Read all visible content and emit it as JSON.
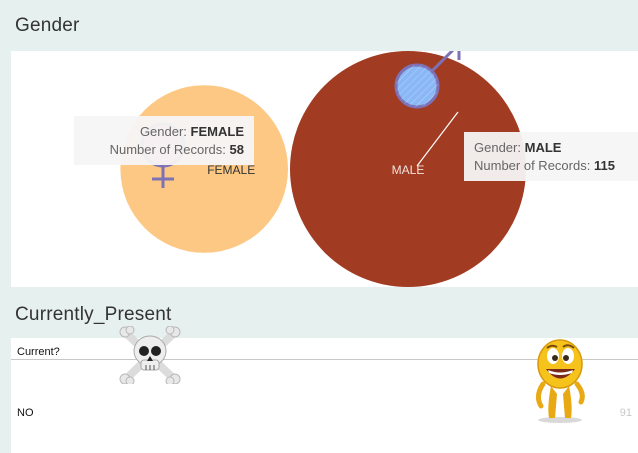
{
  "sections": {
    "gender_title": "Gender",
    "present_title": "Currently_Present"
  },
  "chart_data": {
    "type": "bubble",
    "title": "Gender",
    "categories": [
      "FEMALE",
      "MALE"
    ],
    "values": [
      58,
      115
    ],
    "colors": [
      "#fdc784",
      "#a13c22"
    ],
    "tooltips": [
      {
        "field_label": "Gender:",
        "field_value": "FEMALE",
        "measure_label": "Number of Records:",
        "measure_value": "58"
      },
      {
        "field_label": "Gender:",
        "field_value": "MALE",
        "measure_label": "Number of Records:",
        "measure_value": "115"
      }
    ],
    "icons": [
      "female-symbol-icon",
      "male-symbol-icon"
    ]
  },
  "present_table": {
    "header": "Current?",
    "rows": [
      {
        "label": "NO",
        "value": "91"
      }
    ],
    "icons": [
      "skull-crossbones-icon",
      "smiling-emoji-icon"
    ]
  }
}
